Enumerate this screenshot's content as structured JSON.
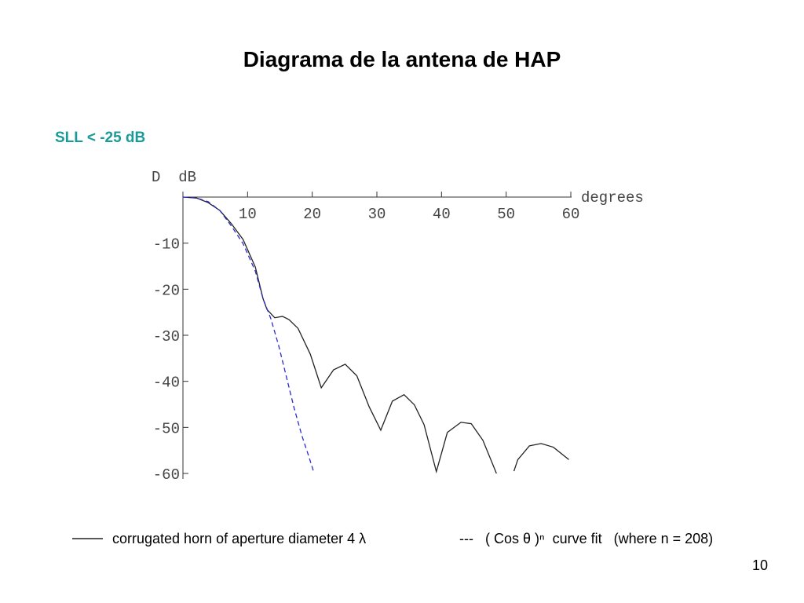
{
  "chart_data": {
    "type": "line",
    "title": "Diagrama de la antena de HAP",
    "subtitle": "SLL < -25 dB",
    "y_label": "D  dB",
    "x_label": "degrees",
    "page_number": "10",
    "xlim": [
      0,
      60
    ],
    "ylim": [
      -60,
      0
    ],
    "xticks": [
      10,
      20,
      30,
      40,
      50,
      60
    ],
    "yticks": [
      -10,
      -20,
      -30,
      -40,
      -50,
      -60
    ],
    "series": [
      {
        "name": "corrugated horn of aperture diameter 4 λ",
        "color": "#222222",
        "dash": false,
        "x": [
          0,
          2.1,
          3.9,
          5.7,
          7.5,
          9.3,
          11.2,
          12.4,
          13.0,
          14.2,
          15.4,
          16.4,
          17.8,
          19.7,
          21.4,
          23.3,
          25.1,
          26.9,
          28.8,
          30.6,
          32.4,
          34.2,
          35.8,
          37.3,
          39.2,
          40.9,
          43.0,
          44.6,
          46.4,
          48.5,
          null,
          51.2,
          51.8,
          53.6,
          55.4,
          57.3,
          59.7
        ],
        "values": [
          0,
          -0.2,
          -1.2,
          -2.9,
          -5.8,
          -9.2,
          -15.2,
          -22.1,
          -24.4,
          -26.2,
          -25.9,
          -26.6,
          -28.5,
          -34.1,
          -41.4,
          -37.5,
          -36.3,
          -38.8,
          -45.5,
          -50.6,
          -44.3,
          -42.9,
          -45.1,
          -49.4,
          -59.6,
          -51.1,
          -48.9,
          -49.2,
          -52.8,
          -60,
          null,
          -59.5,
          -57,
          -54,
          -53.5,
          -54.3,
          -57
        ]
      },
      {
        "name": "( Cos θ )ⁿ  curve fit   (where n = 208)",
        "color": "#2a2ad0",
        "dash": true,
        "x": [
          0,
          2.1,
          3.9,
          5.7,
          7.5,
          9.3,
          11.2,
          12.4,
          13.6,
          14.8,
          16.0,
          17.2,
          18.4,
          19.4,
          20.3
        ],
        "values": [
          0,
          -0.2,
          -1,
          -2.9,
          -6.3,
          -10.1,
          -16.1,
          -22.1,
          -26.4,
          -32.2,
          -39,
          -45.8,
          -51.8,
          -56,
          -60
        ]
      }
    ]
  }
}
